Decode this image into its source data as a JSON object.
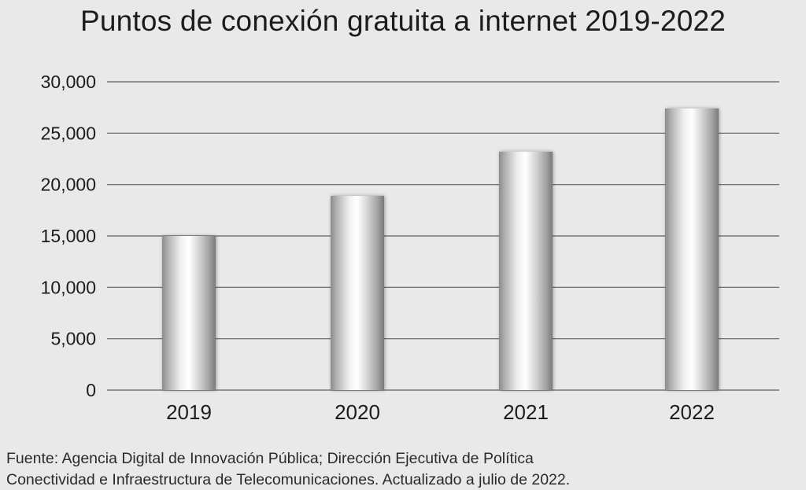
{
  "chart_data": {
    "type": "bar",
    "title": "Puntos de conexión gratuita a internet 2019-2022",
    "categories": [
      "2019",
      "2020",
      "2021",
      "2022"
    ],
    "values": [
      15000,
      18900,
      23200,
      27400
    ],
    "ylim": [
      0,
      30000
    ],
    "yticks": [
      "0",
      "5,000",
      "10,000",
      "15,000",
      "20,000",
      "25,000",
      "30,000"
    ],
    "ytick_values": [
      0,
      5000,
      10000,
      15000,
      20000,
      25000,
      30000
    ],
    "grid": true,
    "xlabel": "",
    "ylabel": ""
  },
  "source": {
    "line1": "Fuente: Agencia Digital de Innovación Pública; Dirección Ejecutiva de Política",
    "line2": "Conectividad e Infraestructura de Telecomunicaciones. Actualizado a julio de 2022."
  },
  "colors": {
    "background": "#e9e9e9",
    "gridline": "#5f5f5f",
    "text": "#1c1c1c"
  }
}
